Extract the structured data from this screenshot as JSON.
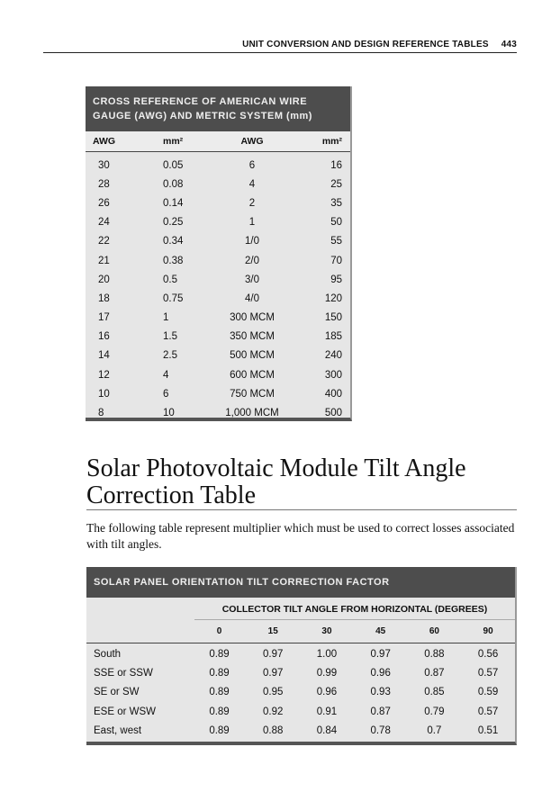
{
  "running_header": {
    "title": "UNIT CONVERSION AND DESIGN REFERENCE TABLES",
    "page_number": "443"
  },
  "awg_table": {
    "title": "CROSS REFERENCE OF AMERICAN WIRE GAUGE (AWG) AND METRIC SYSTEM (mm)",
    "headers": [
      "AWG",
      "mm²",
      "AWG",
      "mm²"
    ],
    "rows": [
      [
        "30",
        "0.05",
        "6",
        "16"
      ],
      [
        "28",
        "0.08",
        "4",
        "25"
      ],
      [
        "26",
        "0.14",
        "2",
        "35"
      ],
      [
        "24",
        "0.25",
        "1",
        "50"
      ],
      [
        "22",
        "0.34",
        "1/0",
        "55"
      ],
      [
        "21",
        "0.38",
        "2/0",
        "70"
      ],
      [
        "20",
        "0.5",
        "3/0",
        "95"
      ],
      [
        "18",
        "0.75",
        "4/0",
        "120"
      ],
      [
        "17",
        "1",
        "300 MCM",
        "150"
      ],
      [
        "16",
        "1.5",
        "350 MCM",
        "185"
      ],
      [
        "14",
        "2.5",
        "500 MCM",
        "240"
      ],
      [
        "12",
        "4",
        "600 MCM",
        "300"
      ],
      [
        "10",
        "6",
        "750 MCM",
        "400"
      ],
      [
        "8",
        "10",
        "1,000 MCM",
        "500"
      ]
    ]
  },
  "section": {
    "heading": "Solar Photovoltaic Module Tilt Angle Correction Table",
    "paragraph": "The following table represent multiplier which must be used to correct losses associated with tilt angles."
  },
  "tilt_table": {
    "title": "SOLAR PANEL ORIENTATION TILT CORRECTION FACTOR",
    "span_header": "COLLECTOR TILT ANGLE FROM HORIZONTAL (DEGREES)",
    "angles": [
      "0",
      "15",
      "30",
      "45",
      "60",
      "90"
    ],
    "rows": [
      [
        "South",
        "0.89",
        "0.97",
        "1.00",
        "0.97",
        "0.88",
        "0.56"
      ],
      [
        "SSE or SSW",
        "0.89",
        "0.97",
        "0.99",
        "0.96",
        "0.87",
        "0.57"
      ],
      [
        "SE or SW",
        "0.89",
        "0.95",
        "0.96",
        "0.93",
        "0.85",
        "0.59"
      ],
      [
        "ESE or WSW",
        "0.89",
        "0.92",
        "0.91",
        "0.87",
        "0.79",
        "0.57"
      ],
      [
        "East, west",
        "0.89",
        "0.88",
        "0.84",
        "0.78",
        "0.7",
        "0.51"
      ]
    ]
  }
}
